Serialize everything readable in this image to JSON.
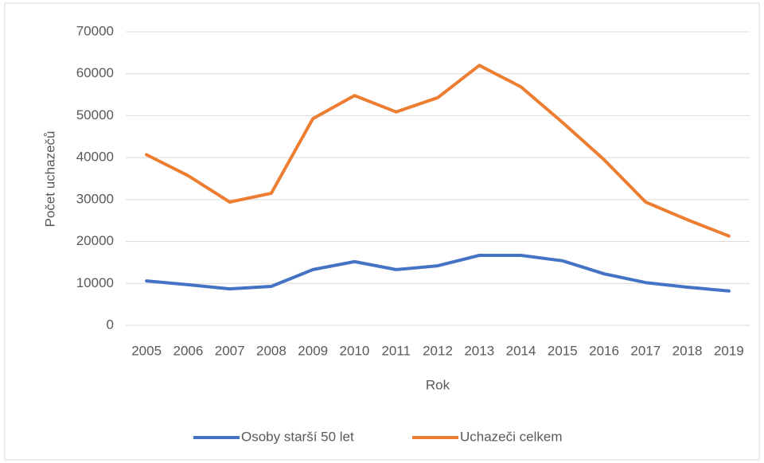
{
  "chart_data": {
    "type": "line",
    "x_label": "Rok",
    "y_label": "Počet uchazečů",
    "categories": [
      "2005",
      "2006",
      "2007",
      "2008",
      "2009",
      "2010",
      "2011",
      "2012",
      "2013",
      "2014",
      "2015",
      "2016",
      "2017",
      "2018",
      "2019"
    ],
    "series": [
      {
        "name": "Osoby starší 50 let",
        "color": "#4472c4",
        "values": [
          10600,
          9700,
          8700,
          9300,
          13300,
          15200,
          13300,
          14200,
          16700,
          16700,
          15400,
          12300,
          10200,
          9100,
          8200
        ]
      },
      {
        "name": "Uchazeči celkem",
        "color": "#ed7d31",
        "values": [
          40700,
          35700,
          29400,
          31500,
          49300,
          54800,
          50900,
          54300,
          62000,
          56900,
          48400,
          39500,
          29400,
          25200,
          21300
        ]
      }
    ],
    "ylim": [
      0,
      70000
    ],
    "yticks": [
      0,
      10000,
      20000,
      30000,
      40000,
      50000,
      60000,
      70000
    ],
    "grid": true,
    "legend": "bottom"
  }
}
